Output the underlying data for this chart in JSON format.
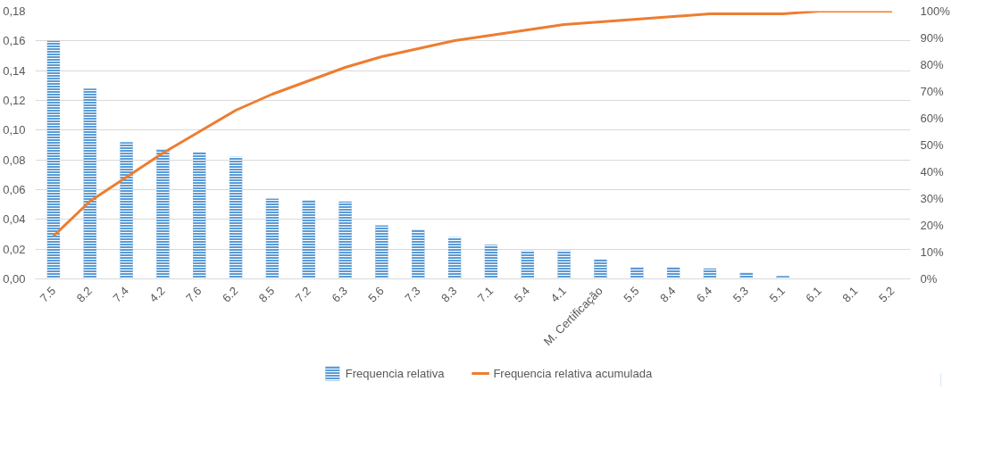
{
  "chart_data": {
    "type": "bar",
    "categories": [
      "7.5",
      "8.2",
      "7.4",
      "4.2",
      "7.6",
      "6.2",
      "8.5",
      "7.2",
      "6.3",
      "5.6",
      "7.3",
      "8.3",
      "7.1",
      "5.4",
      "4.1",
      "M. Certificação",
      "5.5",
      "8.4",
      "6.4",
      "5.3",
      "5.1",
      "6.1",
      "8.1",
      "5.2"
    ],
    "series": [
      {
        "name": "Frequencia relativa",
        "color": "#5b9bd5",
        "values": [
          0.16,
          0.128,
          0.092,
          0.087,
          0.085,
          0.082,
          0.054,
          0.053,
          0.052,
          0.036,
          0.033,
          0.028,
          0.023,
          0.019,
          0.019,
          0.013,
          0.008,
          0.008,
          0.007,
          0.004,
          0.002,
          0,
          0,
          0
        ]
      },
      {
        "name": "Frequencia relativa acumulada",
        "type": "line",
        "axis": "y2",
        "color": "#ed7d31",
        "values": [
          16,
          29,
          38,
          47,
          55,
          63,
          69,
          74,
          79,
          83,
          86,
          89,
          91,
          93,
          95,
          96,
          97,
          98,
          99,
          99,
          99,
          100,
          100,
          100
        ]
      }
    ],
    "ylim": [
      0,
      0.18
    ],
    "yticks": [
      {
        "value": 0,
        "label": "0,00"
      },
      {
        "value": 0.02,
        "label": "0,02"
      },
      {
        "value": 0.04,
        "label": "0,04"
      },
      {
        "value": 0.06,
        "label": "0,06"
      },
      {
        "value": 0.08,
        "label": "0,08"
      },
      {
        "value": 0.1,
        "label": "0,10"
      },
      {
        "value": 0.12,
        "label": "0,12"
      },
      {
        "value": 0.14,
        "label": "0,14"
      },
      {
        "value": 0.16,
        "label": "0,16"
      },
      {
        "value": 0.18,
        "label": "0,18"
      }
    ],
    "y2lim": [
      0,
      100
    ],
    "y2ticks": [
      {
        "value": 0,
        "label": "0%"
      },
      {
        "value": 10,
        "label": "10%"
      },
      {
        "value": 20,
        "label": "20%"
      },
      {
        "value": 30,
        "label": "30%"
      },
      {
        "value": 40,
        "label": "40%"
      },
      {
        "value": 50,
        "label": "50%"
      },
      {
        "value": 60,
        "label": "60%"
      },
      {
        "value": 70,
        "label": "70%"
      },
      {
        "value": 80,
        "label": "80%"
      },
      {
        "value": 90,
        "label": "90%"
      },
      {
        "value": 100,
        "label": "100%"
      }
    ],
    "grid": "y",
    "legend": "bottom"
  }
}
